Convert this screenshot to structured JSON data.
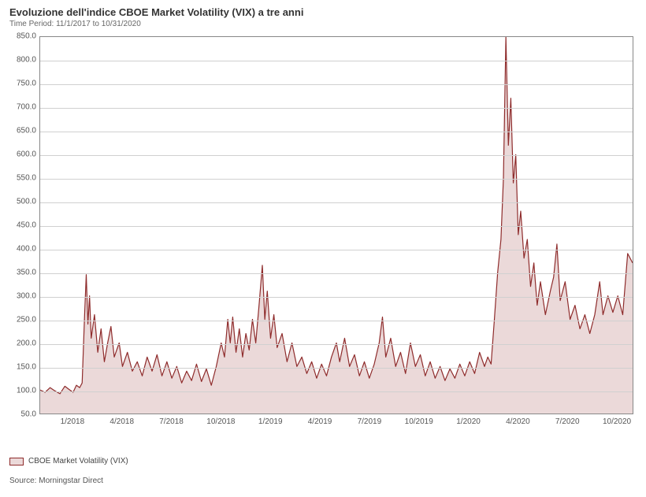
{
  "title": "Evoluzione dell'indice CBOE Market Volatility (VIX) a tre anni",
  "subtitle": "Time Period: 11/1/2017 to 10/31/2020",
  "legend_label": "CBOE Market Volatility (VIX)",
  "source": "Source: Morningstar Direct",
  "chart": {
    "type": "area",
    "background_color": "#ffffff",
    "grid_color": "#d0d0d0",
    "axis_color": "#888888",
    "line_color": "#8e2b2b",
    "fill_color": "rgba(142,43,43,0.18)",
    "line_width": 1.2,
    "title_fontsize": 13,
    "label_fontsize": 10,
    "ylim": [
      50,
      850
    ],
    "ytick_step": 50,
    "yticks": [
      "50.0",
      "100.0",
      "150.0",
      "200.0",
      "250.0",
      "300.0",
      "350.0",
      "400.0",
      "450.0",
      "500.0",
      "550.0",
      "600.0",
      "650.0",
      "700.0",
      "750.0",
      "800.0",
      "850.0"
    ],
    "xlim": [
      0,
      36
    ],
    "xticks": [
      {
        "pos": 2,
        "label": "1/2018"
      },
      {
        "pos": 5,
        "label": "4/2018"
      },
      {
        "pos": 8,
        "label": "7/2018"
      },
      {
        "pos": 11,
        "label": "10/2018"
      },
      {
        "pos": 14,
        "label": "1/2019"
      },
      {
        "pos": 17,
        "label": "4/2019"
      },
      {
        "pos": 20,
        "label": "7/2019"
      },
      {
        "pos": 23,
        "label": "10/2019"
      },
      {
        "pos": 26,
        "label": "1/2020"
      },
      {
        "pos": 29,
        "label": "4/2020"
      },
      {
        "pos": 32,
        "label": "7/2020"
      },
      {
        "pos": 35,
        "label": "10/2020"
      }
    ],
    "series": [
      {
        "x": 0.0,
        "y": 100
      },
      {
        "x": 0.3,
        "y": 95
      },
      {
        "x": 0.6,
        "y": 105
      },
      {
        "x": 0.9,
        "y": 98
      },
      {
        "x": 1.2,
        "y": 92
      },
      {
        "x": 1.5,
        "y": 108
      },
      {
        "x": 1.8,
        "y": 100
      },
      {
        "x": 2.0,
        "y": 95
      },
      {
        "x": 2.2,
        "y": 110
      },
      {
        "x": 2.4,
        "y": 105
      },
      {
        "x": 2.55,
        "y": 115
      },
      {
        "x": 2.7,
        "y": 260
      },
      {
        "x": 2.8,
        "y": 345
      },
      {
        "x": 2.9,
        "y": 240
      },
      {
        "x": 3.0,
        "y": 300
      },
      {
        "x": 3.1,
        "y": 210
      },
      {
        "x": 3.3,
        "y": 260
      },
      {
        "x": 3.5,
        "y": 180
      },
      {
        "x": 3.7,
        "y": 230
      },
      {
        "x": 3.9,
        "y": 160
      },
      {
        "x": 4.1,
        "y": 200
      },
      {
        "x": 4.3,
        "y": 235
      },
      {
        "x": 4.5,
        "y": 170
      },
      {
        "x": 4.8,
        "y": 200
      },
      {
        "x": 5.0,
        "y": 150
      },
      {
        "x": 5.3,
        "y": 180
      },
      {
        "x": 5.6,
        "y": 140
      },
      {
        "x": 5.9,
        "y": 160
      },
      {
        "x": 6.2,
        "y": 130
      },
      {
        "x": 6.5,
        "y": 170
      },
      {
        "x": 6.8,
        "y": 140
      },
      {
        "x": 7.1,
        "y": 175
      },
      {
        "x": 7.4,
        "y": 130
      },
      {
        "x": 7.7,
        "y": 160
      },
      {
        "x": 8.0,
        "y": 125
      },
      {
        "x": 8.3,
        "y": 150
      },
      {
        "x": 8.6,
        "y": 115
      },
      {
        "x": 8.9,
        "y": 140
      },
      {
        "x": 9.2,
        "y": 120
      },
      {
        "x": 9.5,
        "y": 155
      },
      {
        "x": 9.8,
        "y": 118
      },
      {
        "x": 10.1,
        "y": 145
      },
      {
        "x": 10.4,
        "y": 110
      },
      {
        "x": 10.7,
        "y": 150
      },
      {
        "x": 11.0,
        "y": 200
      },
      {
        "x": 11.2,
        "y": 170
      },
      {
        "x": 11.4,
        "y": 250
      },
      {
        "x": 11.55,
        "y": 200
      },
      {
        "x": 11.7,
        "y": 255
      },
      {
        "x": 11.9,
        "y": 180
      },
      {
        "x": 12.1,
        "y": 230
      },
      {
        "x": 12.3,
        "y": 170
      },
      {
        "x": 12.5,
        "y": 220
      },
      {
        "x": 12.7,
        "y": 185
      },
      {
        "x": 12.9,
        "y": 250
      },
      {
        "x": 13.1,
        "y": 200
      },
      {
        "x": 13.3,
        "y": 280
      },
      {
        "x": 13.5,
        "y": 365
      },
      {
        "x": 13.65,
        "y": 250
      },
      {
        "x": 13.8,
        "y": 310
      },
      {
        "x": 14.0,
        "y": 210
      },
      {
        "x": 14.2,
        "y": 260
      },
      {
        "x": 14.4,
        "y": 190
      },
      {
        "x": 14.7,
        "y": 220
      },
      {
        "x": 15.0,
        "y": 160
      },
      {
        "x": 15.3,
        "y": 200
      },
      {
        "x": 15.6,
        "y": 150
      },
      {
        "x": 15.9,
        "y": 170
      },
      {
        "x": 16.2,
        "y": 135
      },
      {
        "x": 16.5,
        "y": 160
      },
      {
        "x": 16.8,
        "y": 125
      },
      {
        "x": 17.1,
        "y": 155
      },
      {
        "x": 17.4,
        "y": 130
      },
      {
        "x": 17.7,
        "y": 170
      },
      {
        "x": 18.0,
        "y": 200
      },
      {
        "x": 18.2,
        "y": 160
      },
      {
        "x": 18.5,
        "y": 210
      },
      {
        "x": 18.8,
        "y": 150
      },
      {
        "x": 19.1,
        "y": 175
      },
      {
        "x": 19.4,
        "y": 130
      },
      {
        "x": 19.7,
        "y": 160
      },
      {
        "x": 20.0,
        "y": 125
      },
      {
        "x": 20.3,
        "y": 155
      },
      {
        "x": 20.6,
        "y": 200
      },
      {
        "x": 20.8,
        "y": 255
      },
      {
        "x": 21.0,
        "y": 170
      },
      {
        "x": 21.3,
        "y": 210
      },
      {
        "x": 21.6,
        "y": 150
      },
      {
        "x": 21.9,
        "y": 180
      },
      {
        "x": 22.2,
        "y": 135
      },
      {
        "x": 22.5,
        "y": 200
      },
      {
        "x": 22.8,
        "y": 150
      },
      {
        "x": 23.1,
        "y": 175
      },
      {
        "x": 23.4,
        "y": 130
      },
      {
        "x": 23.7,
        "y": 160
      },
      {
        "x": 24.0,
        "y": 125
      },
      {
        "x": 24.3,
        "y": 150
      },
      {
        "x": 24.6,
        "y": 120
      },
      {
        "x": 24.9,
        "y": 145
      },
      {
        "x": 25.2,
        "y": 125
      },
      {
        "x": 25.5,
        "y": 155
      },
      {
        "x": 25.8,
        "y": 130
      },
      {
        "x": 26.1,
        "y": 160
      },
      {
        "x": 26.4,
        "y": 135
      },
      {
        "x": 26.7,
        "y": 180
      },
      {
        "x": 27.0,
        "y": 150
      },
      {
        "x": 27.2,
        "y": 170
      },
      {
        "x": 27.4,
        "y": 155
      },
      {
        "x": 27.6,
        "y": 250
      },
      {
        "x": 27.8,
        "y": 350
      },
      {
        "x": 28.0,
        "y": 420
      },
      {
        "x": 28.15,
        "y": 550
      },
      {
        "x": 28.3,
        "y": 850
      },
      {
        "x": 28.45,
        "y": 620
      },
      {
        "x": 28.6,
        "y": 720
      },
      {
        "x": 28.75,
        "y": 540
      },
      {
        "x": 28.9,
        "y": 600
      },
      {
        "x": 29.05,
        "y": 430
      },
      {
        "x": 29.2,
        "y": 480
      },
      {
        "x": 29.4,
        "y": 380
      },
      {
        "x": 29.6,
        "y": 420
      },
      {
        "x": 29.8,
        "y": 320
      },
      {
        "x": 30.0,
        "y": 370
      },
      {
        "x": 30.2,
        "y": 280
      },
      {
        "x": 30.4,
        "y": 330
      },
      {
        "x": 30.7,
        "y": 260
      },
      {
        "x": 31.0,
        "y": 310
      },
      {
        "x": 31.2,
        "y": 340
      },
      {
        "x": 31.4,
        "y": 410
      },
      {
        "x": 31.6,
        "y": 290
      },
      {
        "x": 31.9,
        "y": 330
      },
      {
        "x": 32.2,
        "y": 250
      },
      {
        "x": 32.5,
        "y": 280
      },
      {
        "x": 32.8,
        "y": 230
      },
      {
        "x": 33.1,
        "y": 260
      },
      {
        "x": 33.4,
        "y": 220
      },
      {
        "x": 33.7,
        "y": 260
      },
      {
        "x": 34.0,
        "y": 330
      },
      {
        "x": 34.2,
        "y": 260
      },
      {
        "x": 34.5,
        "y": 300
      },
      {
        "x": 34.8,
        "y": 265
      },
      {
        "x": 35.1,
        "y": 300
      },
      {
        "x": 35.4,
        "y": 260
      },
      {
        "x": 35.7,
        "y": 390
      },
      {
        "x": 36.0,
        "y": 370
      }
    ]
  }
}
